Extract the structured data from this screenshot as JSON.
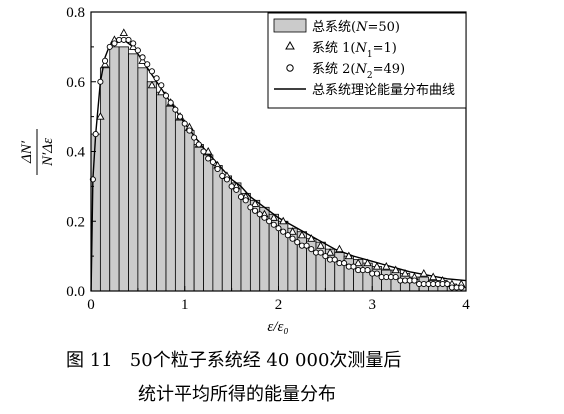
{
  "chart_data": {
    "type": "bar",
    "xlabel": "ε/ε₀",
    "ylabel_num": "ΔN′",
    "ylabel_den": "N′Δε",
    "xlim": [
      0,
      4
    ],
    "ylim": [
      0,
      0.8
    ],
    "xticks": [
      0,
      1,
      2,
      3,
      4
    ],
    "yticks": [
      0.0,
      0.2,
      0.4,
      0.6,
      0.8
    ],
    "ytick_labels": [
      "0.0",
      "0.2",
      "0.4",
      "0.6",
      "0.8"
    ],
    "grid": false,
    "legend_position": "top-right",
    "bin_width": 0.1,
    "legend": {
      "histogram": {
        "prefix": "总系统(",
        "var": "N",
        "suffix": "=50)"
      },
      "system1": {
        "prefix": "系统 1(",
        "var": "N",
        "sub": "1",
        "suffix": "=1)"
      },
      "system2": {
        "prefix": "系统 2(",
        "var": "N",
        "sub": "2",
        "suffix": "=49)"
      },
      "curve": "总系统理论能量分布曲线"
    },
    "histogram": [
      0.45,
      0.64,
      0.7,
      0.7,
      0.68,
      0.64,
      0.6,
      0.57,
      0.53,
      0.49,
      0.46,
      0.42,
      0.39,
      0.36,
      0.33,
      0.31,
      0.28,
      0.26,
      0.24,
      0.22,
      0.2,
      0.18,
      0.17,
      0.15,
      0.14,
      0.12,
      0.11,
      0.1,
      0.09,
      0.08,
      0.07,
      0.06,
      0.06,
      0.05,
      0.04,
      0.04,
      0.03,
      0.03,
      0.02,
      0.01
    ],
    "system1": {
      "x": [
        0.1,
        0.15,
        0.25,
        0.35,
        0.45,
        0.55,
        0.65,
        0.75,
        0.85,
        0.95,
        1.05,
        1.15,
        1.25,
        1.35,
        1.45,
        1.55,
        1.65,
        1.75,
        1.85,
        1.95,
        2.05,
        2.15,
        2.25,
        2.35,
        2.45,
        2.55,
        2.65,
        2.75,
        2.85,
        2.95,
        3.05,
        3.15,
        3.25,
        3.35,
        3.45,
        3.55,
        3.65,
        3.75,
        3.85,
        3.95
      ],
      "y": [
        0.5,
        0.65,
        0.72,
        0.74,
        0.7,
        0.66,
        0.59,
        0.57,
        0.54,
        0.5,
        0.47,
        0.42,
        0.4,
        0.36,
        0.33,
        0.3,
        0.27,
        0.25,
        0.22,
        0.21,
        0.2,
        0.17,
        0.16,
        0.15,
        0.13,
        0.11,
        0.12,
        0.1,
        0.08,
        0.08,
        0.07,
        0.07,
        0.06,
        0.05,
        0.04,
        0.05,
        0.04,
        0.03,
        0.02,
        0.02
      ]
    },
    "system2": {
      "x": [
        0.02,
        0.05,
        0.1,
        0.15,
        0.2,
        0.25,
        0.3,
        0.35,
        0.4,
        0.45,
        0.5,
        0.55,
        0.6,
        0.65,
        0.7,
        0.75,
        0.8,
        0.85,
        0.9,
        0.95,
        1.0,
        1.05,
        1.1,
        1.15,
        1.2,
        1.25,
        1.3,
        1.35,
        1.4,
        1.45,
        1.5,
        1.55,
        1.6,
        1.65,
        1.7,
        1.75,
        1.8,
        1.85,
        1.9,
        1.95,
        2.0,
        2.05,
        2.1,
        2.15,
        2.2,
        2.25,
        2.3,
        2.35,
        2.4,
        2.45,
        2.5,
        2.55,
        2.6,
        2.65,
        2.7,
        2.75,
        2.8,
        2.85,
        2.9,
        2.95,
        3.0,
        3.05,
        3.1,
        3.15,
        3.2,
        3.25,
        3.3,
        3.35,
        3.4,
        3.45,
        3.5,
        3.55,
        3.6,
        3.65,
        3.7,
        3.75,
        3.8,
        3.85,
        3.9,
        3.95
      ],
      "y": [
        0.32,
        0.45,
        0.6,
        0.66,
        0.7,
        0.71,
        0.72,
        0.72,
        0.72,
        0.71,
        0.69,
        0.67,
        0.65,
        0.63,
        0.61,
        0.59,
        0.56,
        0.54,
        0.52,
        0.5,
        0.48,
        0.46,
        0.44,
        0.42,
        0.4,
        0.38,
        0.37,
        0.35,
        0.33,
        0.32,
        0.3,
        0.29,
        0.27,
        0.26,
        0.24,
        0.23,
        0.22,
        0.21,
        0.2,
        0.19,
        0.18,
        0.17,
        0.16,
        0.15,
        0.14,
        0.13,
        0.13,
        0.12,
        0.11,
        0.11,
        0.1,
        0.09,
        0.09,
        0.08,
        0.08,
        0.07,
        0.07,
        0.06,
        0.06,
        0.06,
        0.05,
        0.05,
        0.04,
        0.04,
        0.04,
        0.04,
        0.03,
        0.03,
        0.03,
        0.03,
        0.02,
        0.02,
        0.02,
        0.02,
        0.02,
        0.02,
        0.02,
        0.01,
        0.01,
        0.01
      ]
    },
    "theory_curve": {
      "x": [
        0.001,
        0.02,
        0.05,
        0.1,
        0.15,
        0.2,
        0.25,
        0.3,
        0.35,
        0.4,
        0.45,
        0.5,
        0.6,
        0.7,
        0.8,
        0.9,
        1.0,
        1.1,
        1.2,
        1.3,
        1.4,
        1.5,
        1.6,
        1.7,
        1.8,
        1.9,
        2.0,
        2.2,
        2.4,
        2.6,
        2.8,
        3.0,
        3.2,
        3.4,
        3.6,
        3.8,
        4.0
      ],
      "y": [
        0.0,
        0.32,
        0.45,
        0.6,
        0.67,
        0.705,
        0.72,
        0.725,
        0.72,
        0.71,
        0.7,
        0.68,
        0.64,
        0.6,
        0.56,
        0.52,
        0.48,
        0.445,
        0.41,
        0.38,
        0.35,
        0.32,
        0.3,
        0.27,
        0.25,
        0.23,
        0.21,
        0.18,
        0.15,
        0.12,
        0.1,
        0.085,
        0.07,
        0.055,
        0.045,
        0.035,
        0.03
      ]
    }
  },
  "caption": {
    "line1": "图 11   50个粒子系统经 40 000次测量后",
    "line2": "统计平均所得的能量分布"
  }
}
